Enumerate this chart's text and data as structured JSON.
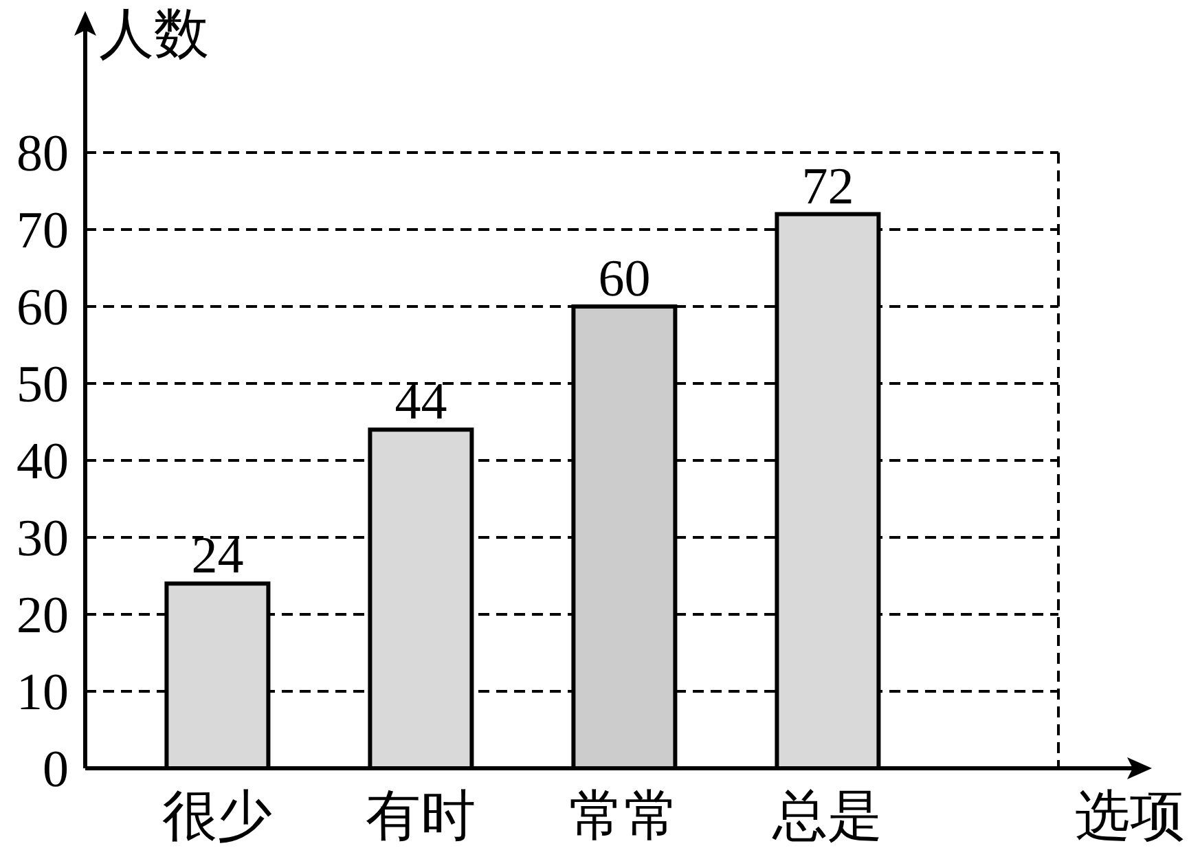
{
  "chart_data": {
    "type": "bar",
    "xlabel": "选项",
    "ylabel": "人数",
    "categories": [
      "很少",
      "有时",
      "常常",
      "总是"
    ],
    "values": [
      24,
      44,
      60,
      72
    ],
    "colors": [
      "#d9d9d9",
      "#d9d9d9",
      "#cccccc",
      "#d9d9d9"
    ],
    "ylim": [
      0,
      80
    ],
    "yticks": [
      0,
      10,
      20,
      30,
      40,
      50,
      60,
      70,
      80
    ],
    "grid": "y",
    "data_labels": true
  }
}
